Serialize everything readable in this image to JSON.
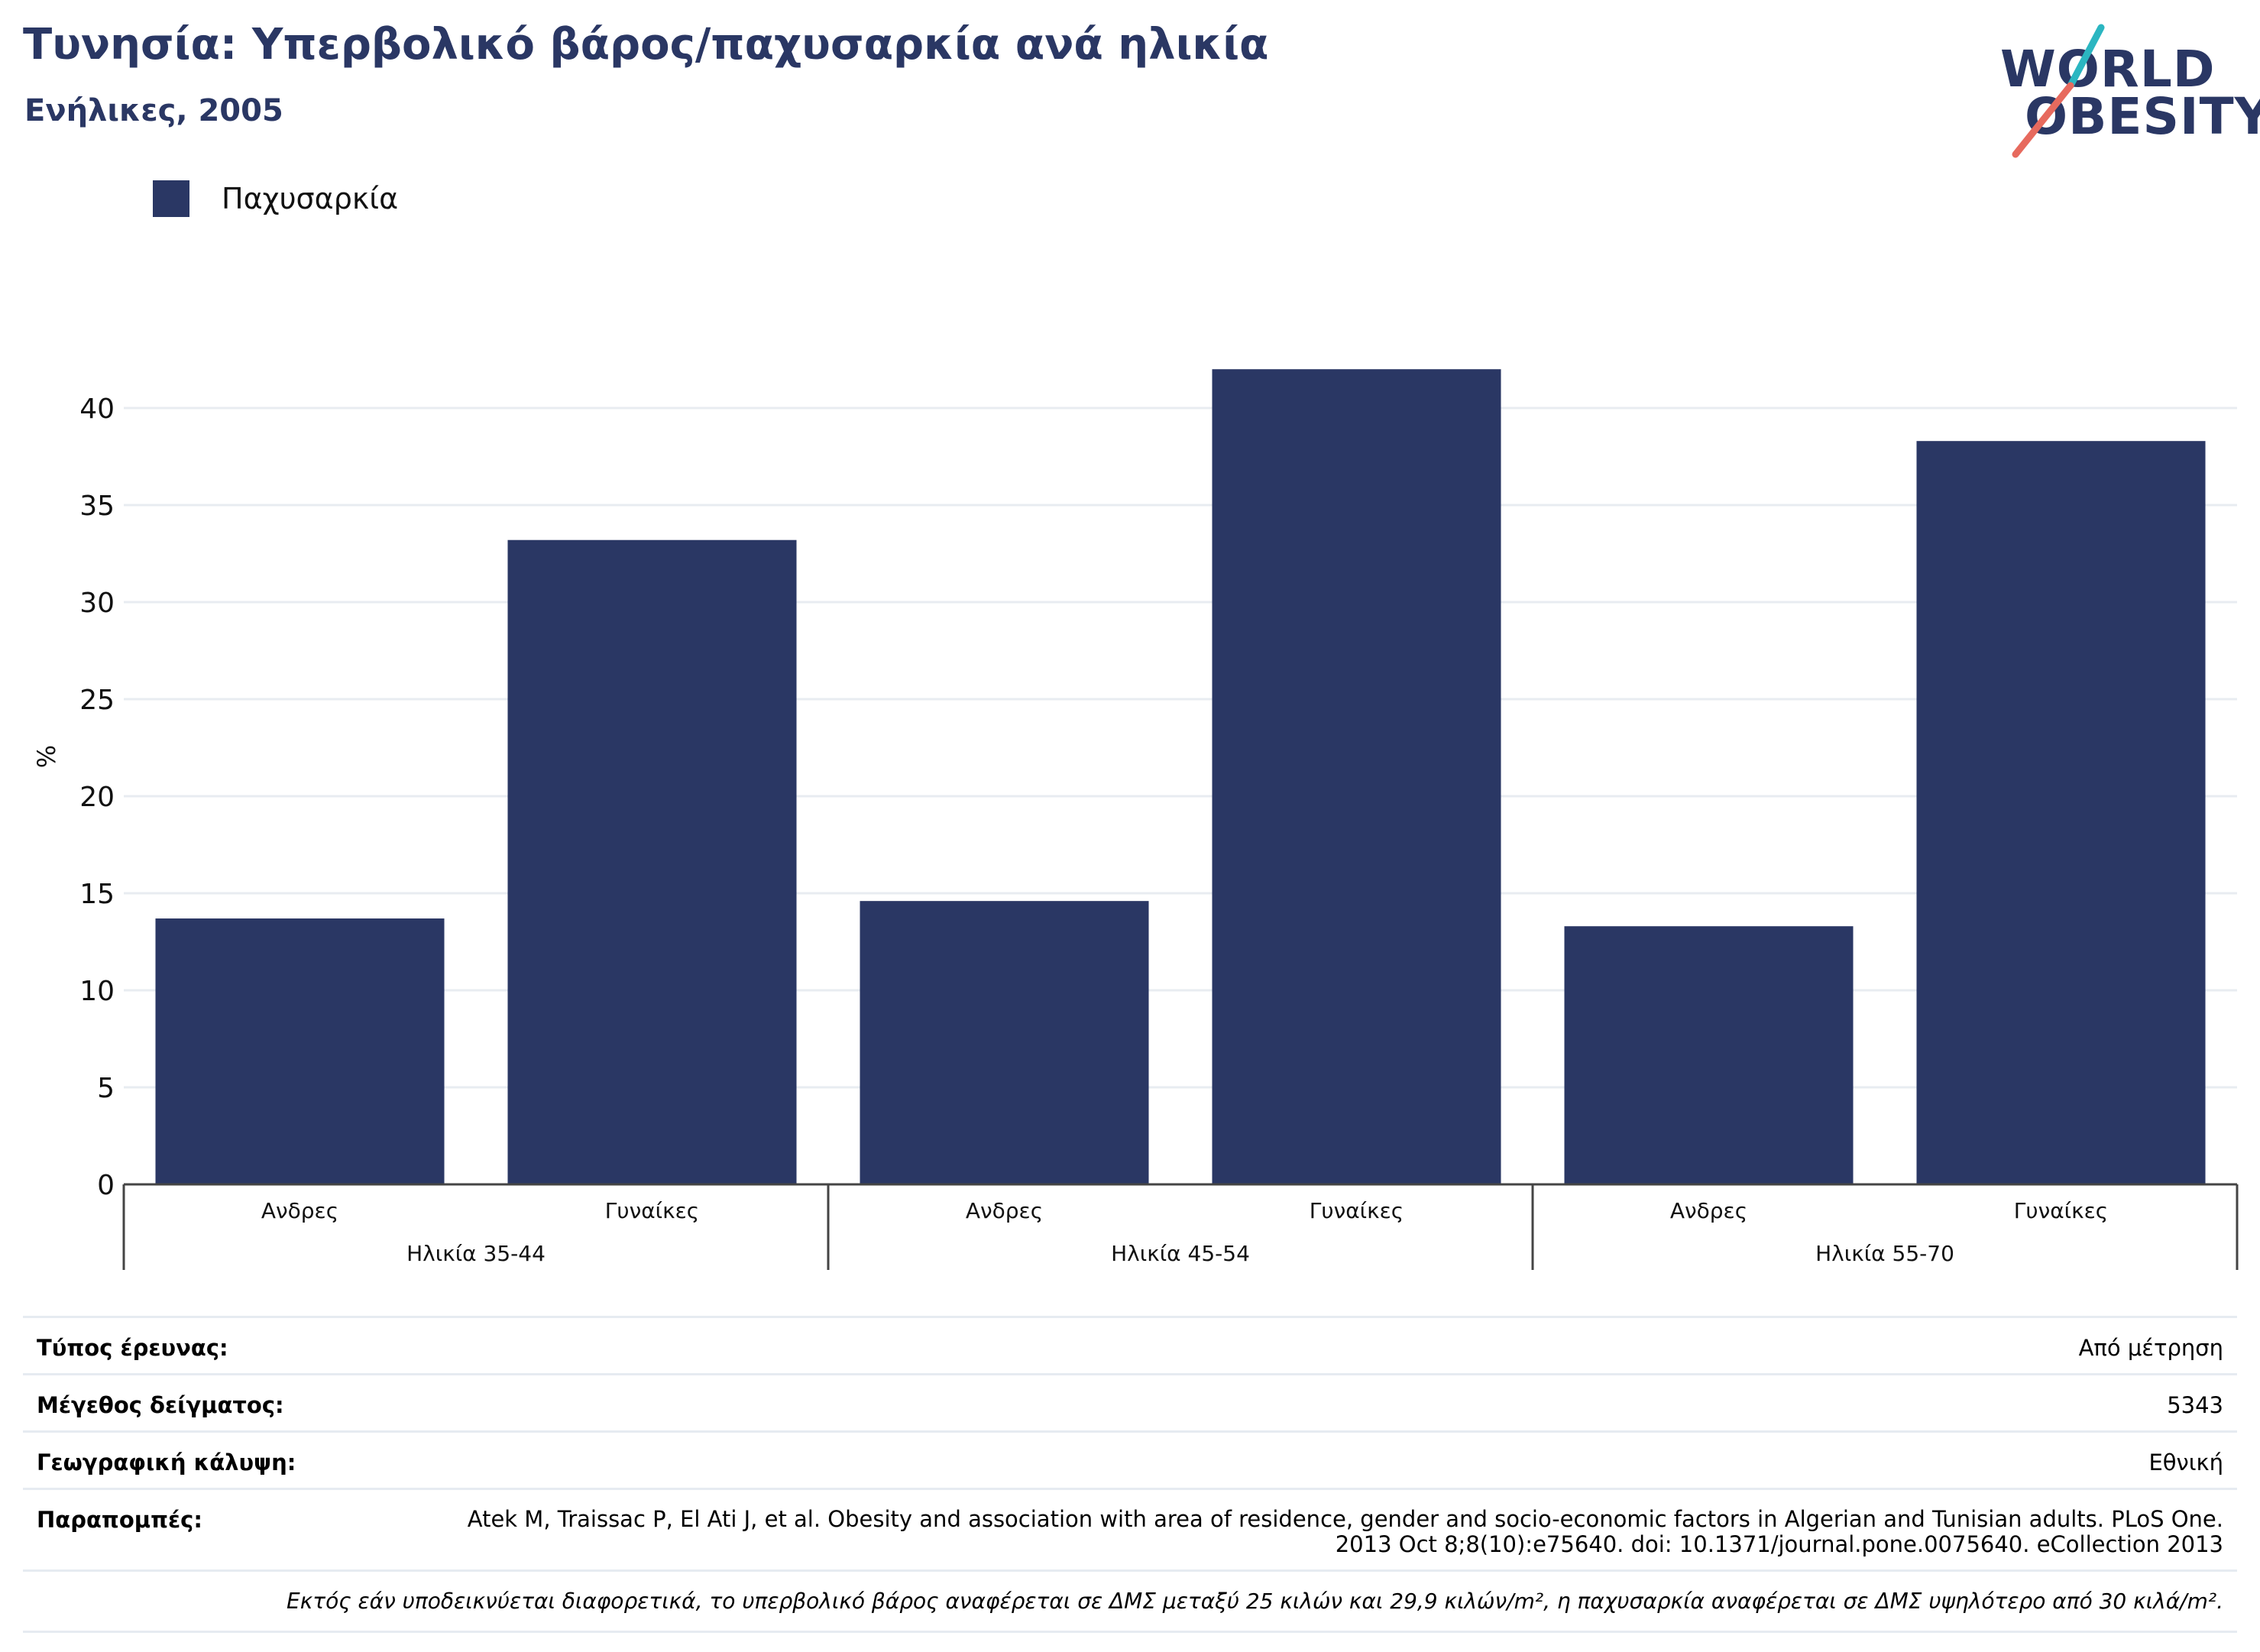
{
  "header": {
    "title": "Τυνησία: Υπερβολικό βάρος/παχυσαρκία ανά ηλικία",
    "subtitle": "Ενήλικες, 2005"
  },
  "logo": {
    "line1": "WORLD",
    "line2": "OBESITY",
    "colors": {
      "text": "#2a3764",
      "slash_teal": "#2bb6c1",
      "slash_coral": "#e76a5e"
    }
  },
  "legend": {
    "label": "Παχυσαρκία",
    "color": "#2a3764"
  },
  "chart_data": {
    "type": "bar",
    "ylabel": "%",
    "ylim": [
      0,
      42
    ],
    "yticks": [
      0,
      5,
      10,
      15,
      20,
      25,
      30,
      35,
      40
    ],
    "grid": true,
    "legend_position": "top-left",
    "groups": [
      {
        "label": "Ηλικία 35-44",
        "categories": [
          "Ανδρες",
          "Γυναίκες"
        ],
        "values": [
          13.7,
          33.2
        ]
      },
      {
        "label": "Ηλικία 45-54",
        "categories": [
          "Ανδρες",
          "Γυναίκες"
        ],
        "values": [
          14.6,
          42.0
        ]
      },
      {
        "label": "Ηλικία 55-70",
        "categories": [
          "Ανδρες",
          "Γυναίκες"
        ],
        "values": [
          13.3,
          38.3
        ]
      }
    ],
    "series": [
      {
        "name": "Παχυσαρκία",
        "color": "#2a3764"
      }
    ]
  },
  "info": {
    "rows": [
      {
        "key": "Τύπος έρευνας:",
        "value": "Από μέτρηση"
      },
      {
        "key": "Μέγεθος δείγματος:",
        "value": "5343"
      },
      {
        "key": "Γεωγραφική κάλυψη:",
        "value": "Εθνική"
      },
      {
        "key": "Παραπομπές:",
        "value": "Atek M, Traissac P, El Ati J, et al. Obesity and association with area of residence, gender and socio-economic factors in Algerian and Tunisian adults. PLoS One. 2013 Oct 8;8(10):e75640. doi: 10.1371/journal.pone.0075640. eCollection 2013"
      }
    ],
    "note": "Εκτός εάν υποδεικνύεται διαφορετικά, το υπερβολικό βάρος αναφέρεται σε ΔΜΣ μεταξύ 25 κιλών και 29,9 κιλών/m², η παχυσαρκία αναφέρεται σε ΔΜΣ υψηλότερο από 30 κιλά/m²."
  }
}
